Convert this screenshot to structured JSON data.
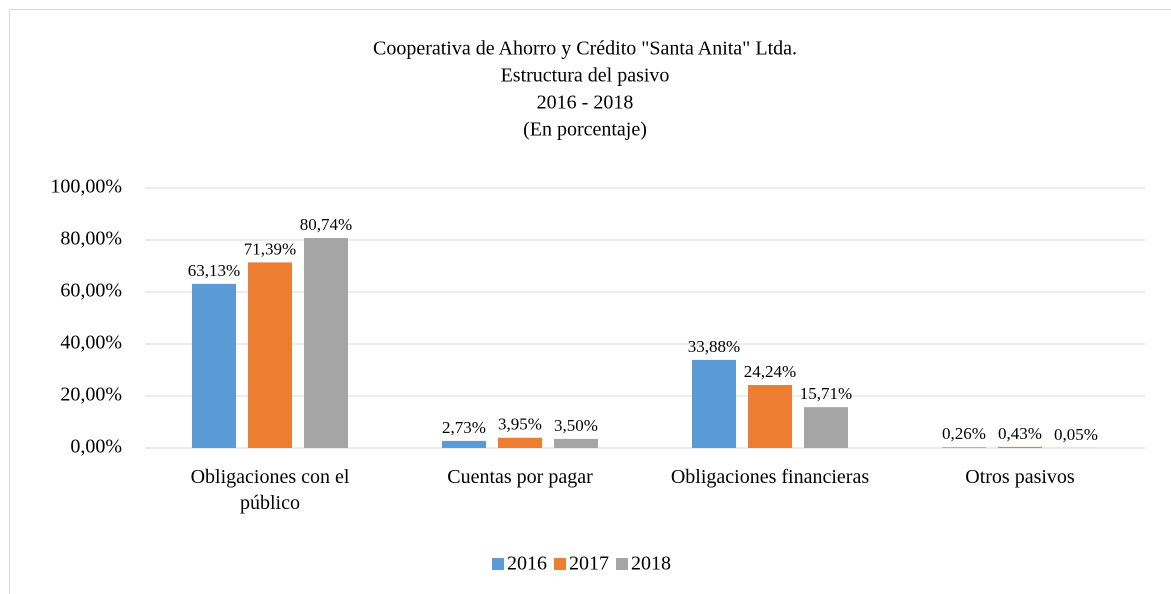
{
  "chart_data": {
    "type": "bar",
    "title": [
      "Cooperativa de Ahorro y Crédito \"Santa Anita\" Ltda.",
      "Estructura del pasivo",
      "2016 - 2018",
      "(En porcentaje)"
    ],
    "categories": [
      "Obligaciones con el público",
      "Cuentas por pagar",
      "Obligaciones financieras",
      "Otros pasivos"
    ],
    "series": [
      {
        "name": "2016",
        "color": "#5b9bd5",
        "values": [
          63.13,
          2.73,
          33.88,
          0.26
        ],
        "value_labels": [
          "63,13%",
          "2,73%",
          "33,88%",
          "0,26%"
        ]
      },
      {
        "name": "2017",
        "color": "#ed7d31",
        "values": [
          71.39,
          3.95,
          24.24,
          0.43
        ],
        "value_labels": [
          "71,39%",
          "3,95%",
          "24,24%",
          "0,43%"
        ]
      },
      {
        "name": "2018",
        "color": "#a5a5a5",
        "values": [
          80.74,
          3.5,
          15.71,
          0.05
        ],
        "value_labels": [
          "80,74%",
          "3,50%",
          "15,71%",
          "0,05%"
        ]
      }
    ],
    "ylim": [
      0,
      100
    ],
    "yticks": [
      {
        "value": 0,
        "label": "0,00%"
      },
      {
        "value": 20,
        "label": "20,00%"
      },
      {
        "value": 40,
        "label": "40,00%"
      },
      {
        "value": 60,
        "label": "60,00%"
      },
      {
        "value": 80,
        "label": "80,00%"
      },
      {
        "value": 100,
        "label": "100,00%"
      }
    ],
    "grid": true,
    "legend": "bottom"
  }
}
